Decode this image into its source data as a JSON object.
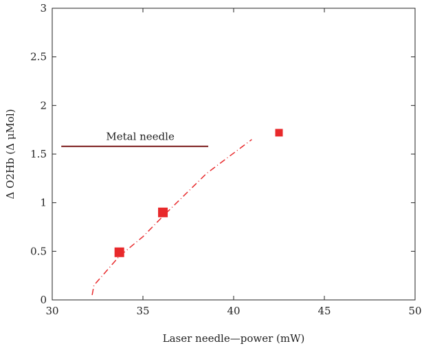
{
  "chart_data": {
    "type": "scatter",
    "xlabel": "Laser needle—power (mW)",
    "ylabel": "Δ O2Hb (Δ μMol)",
    "xlim": [
      30,
      50
    ],
    "ylim": [
      0,
      3
    ],
    "x_ticks": [
      30,
      35,
      40,
      45,
      50
    ],
    "y_ticks": [
      0,
      0.5,
      1,
      1.5,
      2,
      2.5,
      3
    ],
    "x_tick_labels": [
      "30",
      "35",
      "40",
      "45",
      "50"
    ],
    "y_tick_labels": [
      "0",
      "0.5",
      "1",
      "1.5",
      "2",
      "2.5",
      "3"
    ],
    "grid": false,
    "series": [
      {
        "style": "markers",
        "marker": "square",
        "color": "#e8292b",
        "x": [
          33.7,
          36.1,
          42.5
        ],
        "y": [
          0.49,
          0.9,
          1.72
        ]
      },
      {
        "style": "dash-dot-line",
        "color": "#e8292b",
        "x": [
          32.2,
          32.3,
          33.7,
          35.0,
          36.1,
          38.5,
          41.0
        ],
        "y": [
          0.05,
          0.15,
          0.45,
          0.65,
          0.86,
          1.3,
          1.65
        ]
      }
    ],
    "reference_lines": [
      {
        "label": "Metal needle",
        "y": 1.58,
        "x_range": [
          30.5,
          38.6
        ],
        "color": "#7a1a1a"
      }
    ]
  }
}
